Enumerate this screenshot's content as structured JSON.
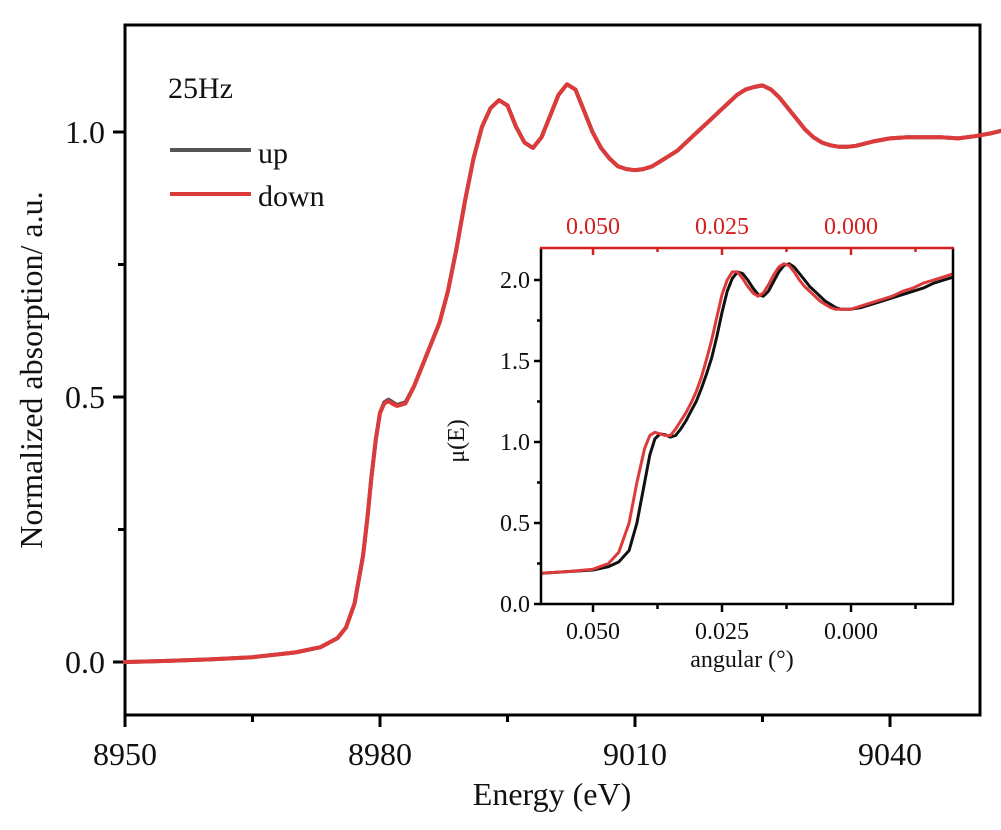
{
  "chart_data": [
    {
      "id": "main",
      "type": "line",
      "title": "",
      "xlabel": "Energy (eV)",
      "ylabel": "Normalized absorption/ a.u.",
      "xlim": [
        8950,
        9054
      ],
      "ylim": [
        -0.1,
        1.2
      ],
      "xticks": [
        8950,
        8980,
        9010,
        9040
      ],
      "xtick_labels": [
        "8950",
        "8980",
        "9010",
        "9040"
      ],
      "yticks": [
        0.0,
        0.5,
        1.0
      ],
      "ytick_labels": [
        "0.0",
        "0.5",
        "1.0"
      ],
      "grid": false,
      "annotation": "25Hz",
      "legend": {
        "placement": "top-left",
        "entries": [
          "up",
          "down"
        ]
      },
      "series": [
        {
          "name": "up",
          "color": "#555555",
          "x": [
            8950,
            8955,
            8960,
            8965,
            8970,
            8973,
            8975,
            8976,
            8977,
            8978,
            8978.5,
            8979,
            8979.5,
            8980,
            8980.5,
            8981,
            8981.5,
            8982,
            8983,
            8984,
            8985,
            8986,
            8987,
            8988,
            8989,
            8990,
            8991,
            8992,
            8993,
            8994,
            8995,
            8996,
            8997,
            8998,
            8999,
            9000,
            9001,
            9002,
            9003,
            9004,
            9005,
            9006,
            9007,
            9008,
            9009,
            9010,
            9011,
            9012,
            9013,
            9014,
            9015,
            9016,
            9017,
            9018,
            9019,
            9020,
            9021,
            9022,
            9023,
            9024,
            9025,
            9026,
            9027,
            9028,
            9029,
            9030,
            9031,
            9032,
            9033,
            9034,
            9035,
            9036,
            9037,
            9038,
            9040,
            9042,
            9044,
            9046,
            9048,
            9050,
            9052,
            9054
          ],
          "y": [
            0.0,
            0.002,
            0.005,
            0.009,
            0.018,
            0.028,
            0.045,
            0.065,
            0.11,
            0.2,
            0.27,
            0.35,
            0.42,
            0.47,
            0.49,
            0.495,
            0.49,
            0.485,
            0.49,
            0.52,
            0.56,
            0.6,
            0.64,
            0.7,
            0.78,
            0.87,
            0.95,
            1.01,
            1.045,
            1.06,
            1.05,
            1.01,
            0.98,
            0.97,
            0.99,
            1.03,
            1.07,
            1.09,
            1.08,
            1.04,
            1.0,
            0.97,
            0.95,
            0.935,
            0.93,
            0.928,
            0.93,
            0.935,
            0.945,
            0.955,
            0.965,
            0.98,
            0.995,
            1.01,
            1.025,
            1.04,
            1.055,
            1.07,
            1.08,
            1.085,
            1.088,
            1.08,
            1.065,
            1.045,
            1.025,
            1.005,
            0.99,
            0.98,
            0.975,
            0.972,
            0.972,
            0.974,
            0.978,
            0.982,
            0.988,
            0.99,
            0.99,
            0.99,
            0.988,
            0.992,
            0.998,
            1.006
          ]
        },
        {
          "name": "down",
          "color": "#dd3b3b",
          "x": [
            8950,
            8955,
            8960,
            8965,
            8970,
            8973,
            8975,
            8976,
            8977,
            8978,
            8978.5,
            8979,
            8979.5,
            8980,
            8980.5,
            8981,
            8981.5,
            8982,
            8983,
            8984,
            8985,
            8986,
            8987,
            8988,
            8989,
            8990,
            8991,
            8992,
            8993,
            8994,
            8995,
            8996,
            8997,
            8998,
            8999,
            9000,
            9001,
            9002,
            9003,
            9004,
            9005,
            9006,
            9007,
            9008,
            9009,
            9010,
            9011,
            9012,
            9013,
            9014,
            9015,
            9016,
            9017,
            9018,
            9019,
            9020,
            9021,
            9022,
            9023,
            9024,
            9025,
            9026,
            9027,
            9028,
            9029,
            9030,
            9031,
            9032,
            9033,
            9034,
            9035,
            9036,
            9037,
            9038,
            9040,
            9042,
            9044,
            9046,
            9048,
            9050,
            9052,
            9054
          ],
          "y": [
            0.0,
            0.002,
            0.005,
            0.009,
            0.018,
            0.028,
            0.045,
            0.065,
            0.11,
            0.2,
            0.27,
            0.35,
            0.42,
            0.47,
            0.488,
            0.492,
            0.487,
            0.483,
            0.488,
            0.52,
            0.56,
            0.6,
            0.64,
            0.7,
            0.78,
            0.87,
            0.95,
            1.01,
            1.045,
            1.06,
            1.05,
            1.01,
            0.98,
            0.97,
            0.99,
            1.03,
            1.07,
            1.09,
            1.08,
            1.04,
            1.0,
            0.97,
            0.95,
            0.935,
            0.93,
            0.928,
            0.93,
            0.935,
            0.945,
            0.955,
            0.965,
            0.98,
            0.995,
            1.01,
            1.025,
            1.04,
            1.055,
            1.07,
            1.08,
            1.085,
            1.088,
            1.08,
            1.065,
            1.045,
            1.025,
            1.005,
            0.99,
            0.98,
            0.975,
            0.972,
            0.972,
            0.974,
            0.978,
            0.982,
            0.988,
            0.99,
            0.99,
            0.99,
            0.988,
            0.992,
            0.998,
            1.006
          ]
        }
      ]
    },
    {
      "id": "inset",
      "type": "line",
      "title": "",
      "xlabel": "angular (°)",
      "ylabel": "μ(E)",
      "xlim": [
        0.06,
        -0.02
      ],
      "ylim": [
        0.0,
        2.2
      ],
      "xticks": [
        0.05,
        0.025,
        0.0
      ],
      "xtick_labels": [
        "0.050",
        "0.025",
        "0.000"
      ],
      "top_xticks": [
        0.05,
        0.025,
        0.0
      ],
      "top_xtick_labels": [
        "0.050",
        "0.025",
        "0.000"
      ],
      "top_axis_color": "#d42020",
      "yticks": [
        0.0,
        0.5,
        1.0,
        1.5,
        2.0
      ],
      "ytick_labels": [
        "0.0",
        "0.5",
        "1.0",
        "1.5",
        "2.0"
      ],
      "grid": false,
      "series": [
        {
          "name": "up",
          "color": "#111111",
          "x": [
            0.06,
            0.055,
            0.05,
            0.047,
            0.045,
            0.043,
            0.0415,
            0.04,
            0.039,
            0.038,
            0.037,
            0.036,
            0.035,
            0.034,
            0.033,
            0.032,
            0.031,
            0.03,
            0.029,
            0.028,
            0.027,
            0.026,
            0.025,
            0.024,
            0.023,
            0.022,
            0.021,
            0.02,
            0.019,
            0.018,
            0.017,
            0.016,
            0.015,
            0.014,
            0.013,
            0.012,
            0.011,
            0.01,
            0.009,
            0.008,
            0.007,
            0.006,
            0.005,
            0.004,
            0.003,
            0.002,
            0.001,
            0.0,
            -0.002,
            -0.004,
            -0.006,
            -0.008,
            -0.01,
            -0.012,
            -0.014,
            -0.016,
            -0.018,
            -0.02
          ],
          "y": [
            0.19,
            0.2,
            0.21,
            0.23,
            0.26,
            0.33,
            0.5,
            0.75,
            0.92,
            1.02,
            1.05,
            1.045,
            1.03,
            1.04,
            1.08,
            1.13,
            1.19,
            1.25,
            1.33,
            1.42,
            1.52,
            1.65,
            1.8,
            1.93,
            2.01,
            2.05,
            2.04,
            2.0,
            1.95,
            1.91,
            1.9,
            1.93,
            1.99,
            2.05,
            2.09,
            2.1,
            2.08,
            2.04,
            2.0,
            1.96,
            1.93,
            1.9,
            1.87,
            1.85,
            1.83,
            1.82,
            1.82,
            1.82,
            1.83,
            1.85,
            1.87,
            1.89,
            1.91,
            1.93,
            1.95,
            1.98,
            2.0,
            2.02
          ]
        },
        {
          "name": "down",
          "color": "#dd3b3b",
          "x": [
            0.06,
            0.055,
            0.05,
            0.047,
            0.045,
            0.043,
            0.0415,
            0.04,
            0.039,
            0.038,
            0.037,
            0.036,
            0.035,
            0.034,
            0.033,
            0.032,
            0.031,
            0.03,
            0.029,
            0.028,
            0.027,
            0.026,
            0.025,
            0.024,
            0.023,
            0.022,
            0.021,
            0.02,
            0.019,
            0.018,
            0.017,
            0.016,
            0.015,
            0.014,
            0.013,
            0.012,
            0.011,
            0.01,
            0.009,
            0.008,
            0.007,
            0.006,
            0.005,
            0.004,
            0.003,
            0.002,
            0.001,
            0.0,
            -0.002,
            -0.004,
            -0.006,
            -0.008,
            -0.01,
            -0.012,
            -0.014,
            -0.016,
            -0.018,
            -0.02
          ],
          "y": [
            0.19,
            0.2,
            0.215,
            0.25,
            0.32,
            0.5,
            0.75,
            0.96,
            1.04,
            1.06,
            1.05,
            1.04,
            1.04,
            1.08,
            1.13,
            1.18,
            1.24,
            1.31,
            1.4,
            1.51,
            1.63,
            1.77,
            1.91,
            2.0,
            2.05,
            2.05,
            2.01,
            1.96,
            1.92,
            1.9,
            1.92,
            1.97,
            2.03,
            2.08,
            2.1,
            2.09,
            2.05,
            2.0,
            1.96,
            1.93,
            1.9,
            1.87,
            1.85,
            1.83,
            1.82,
            1.82,
            1.82,
            1.82,
            1.84,
            1.86,
            1.88,
            1.9,
            1.93,
            1.95,
            1.98,
            2.0,
            2.02,
            2.04
          ]
        }
      ]
    }
  ]
}
